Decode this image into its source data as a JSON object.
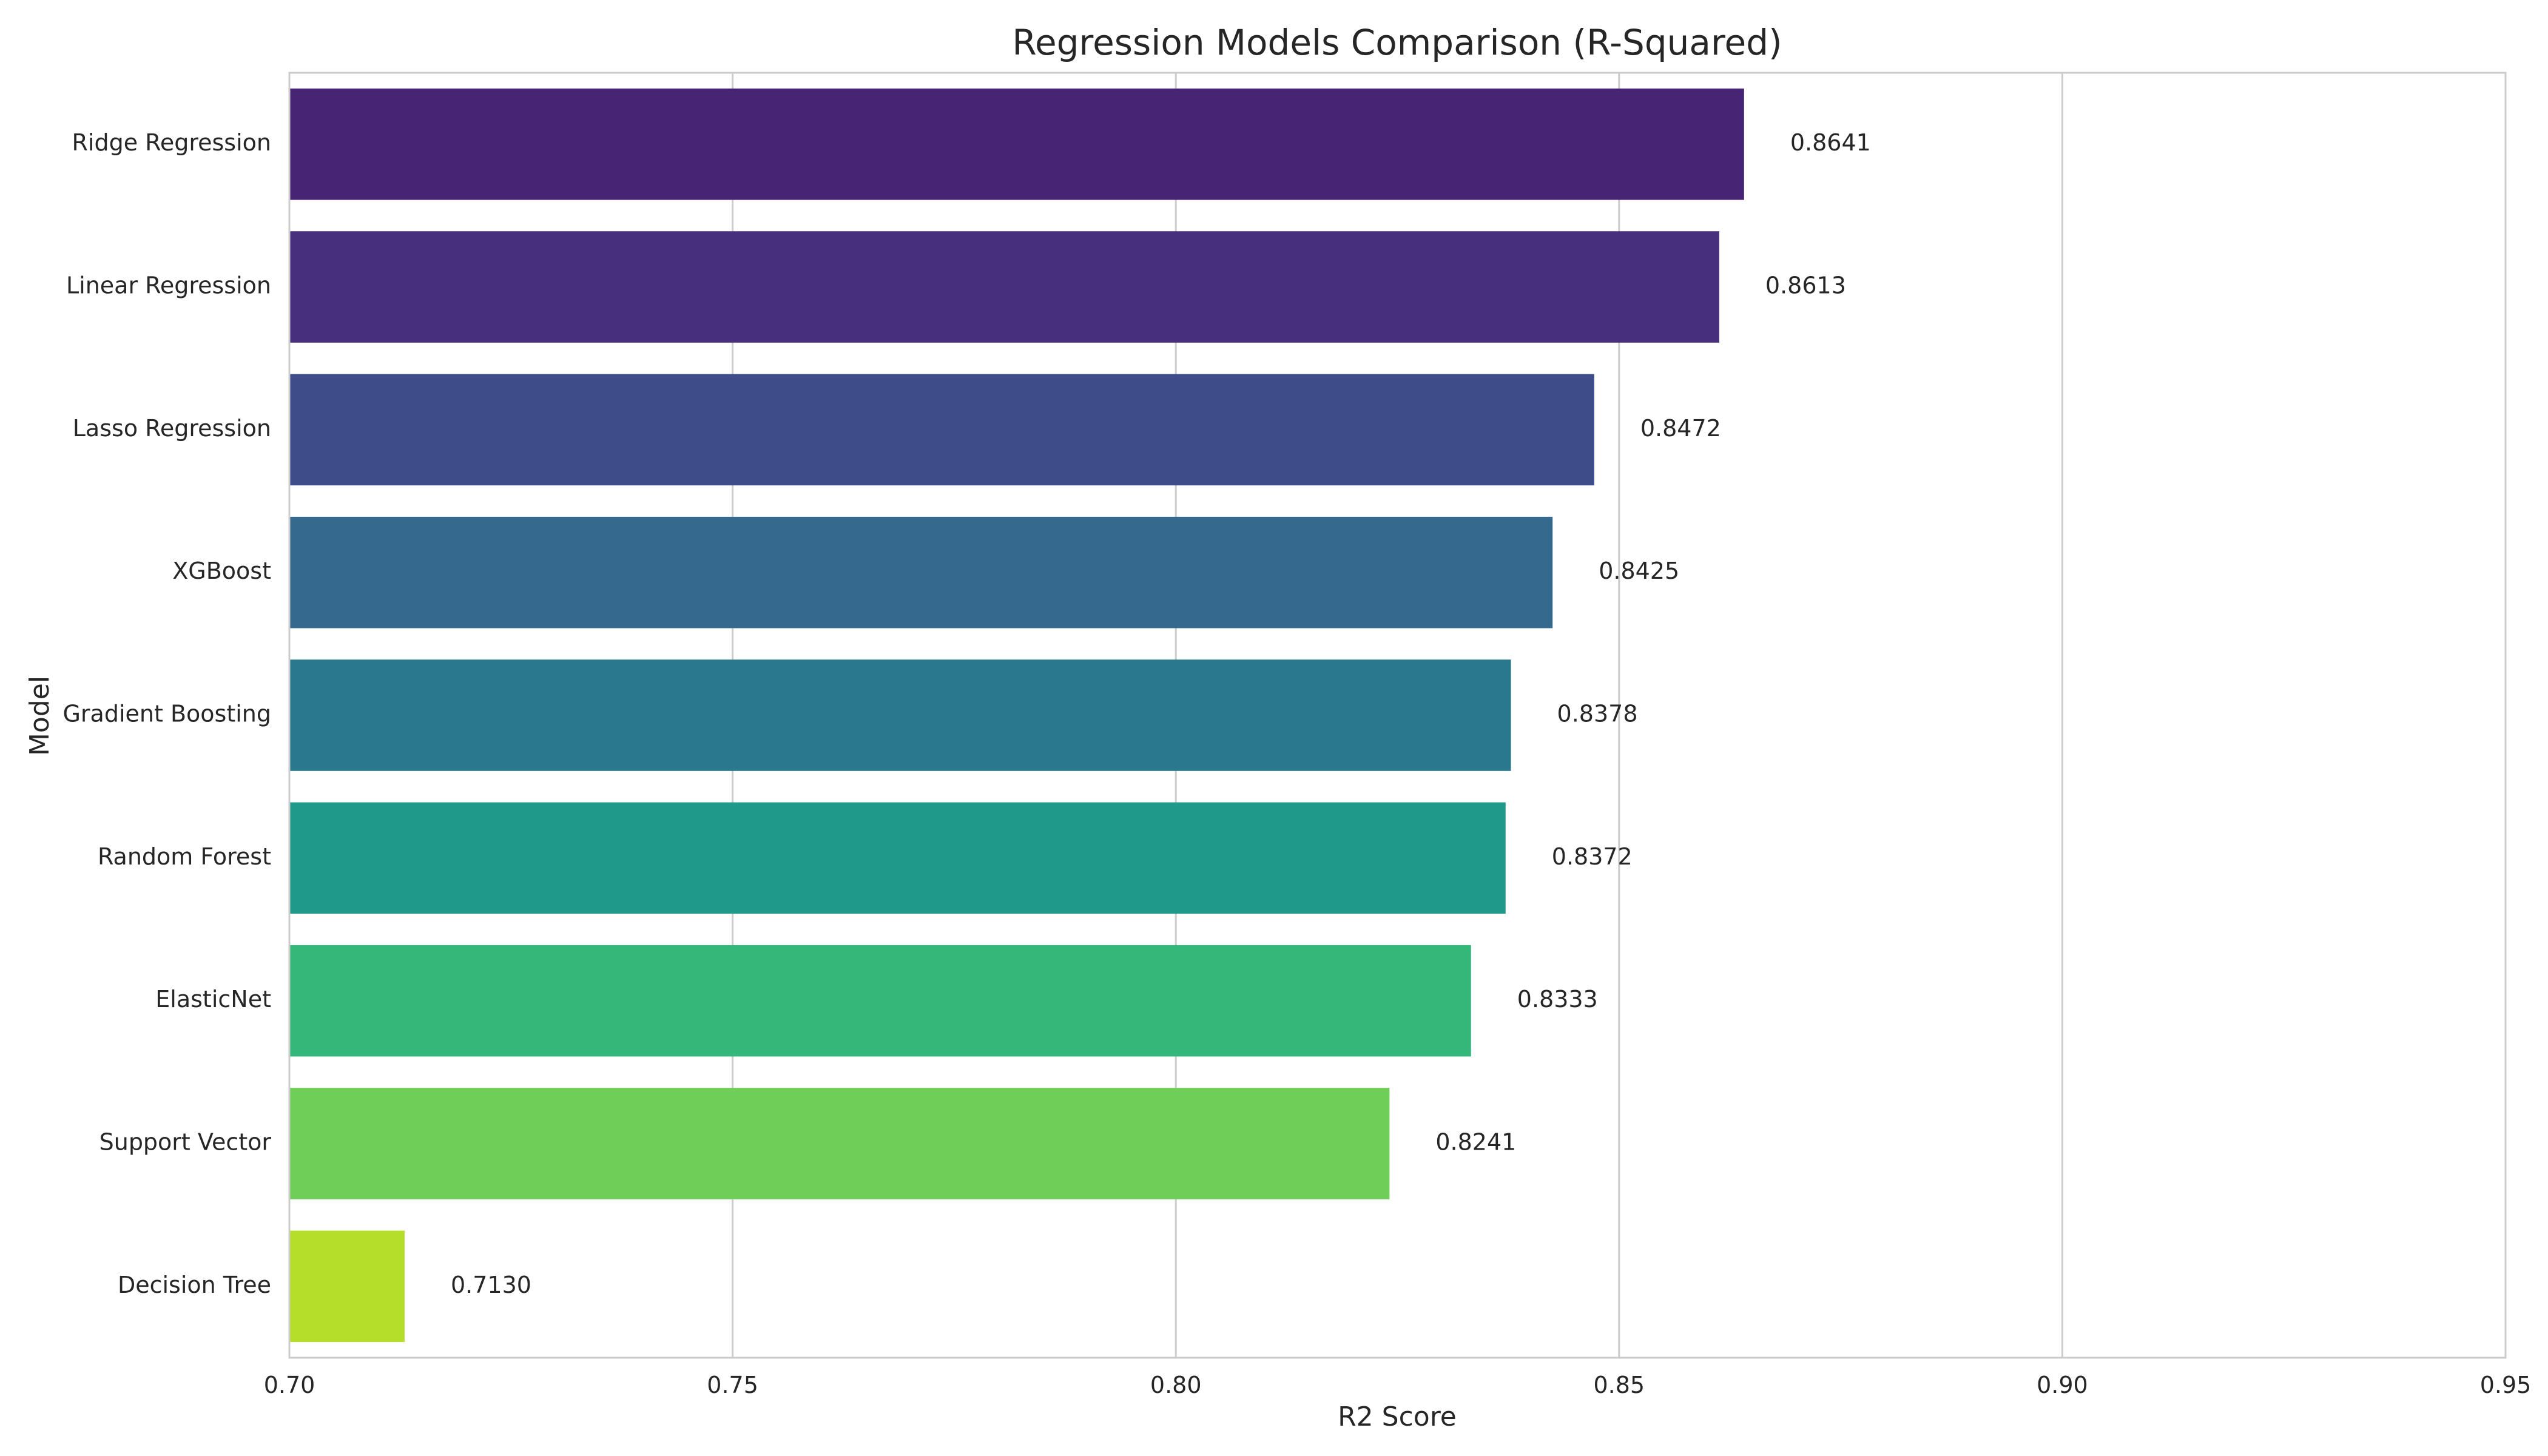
{
  "chart_data": {
    "type": "bar",
    "orientation": "horizontal",
    "title": "Regression Models Comparison (R-Squared)",
    "xlabel": "R2 Score",
    "ylabel": "Model",
    "xlim": [
      0.7,
      0.95
    ],
    "xticks": [
      0.7,
      0.75,
      0.8,
      0.85,
      0.9,
      0.95
    ],
    "xtick_labels": [
      "0.70",
      "0.75",
      "0.80",
      "0.85",
      "0.90",
      "0.95"
    ],
    "grid": "vertical",
    "palette": "viridis",
    "categories": [
      "Ridge Regression",
      "Linear Regression",
      "Lasso Regression",
      "XGBoost",
      "Gradient Boosting",
      "Random Forest",
      "ElasticNet",
      "Support Vector",
      "Decision Tree"
    ],
    "values": [
      0.8641,
      0.8613,
      0.8472,
      0.8425,
      0.8378,
      0.8372,
      0.8333,
      0.8241,
      0.713
    ],
    "value_labels": [
      "0.8641",
      "0.8613",
      "0.8472",
      "0.8425",
      "0.8378",
      "0.8372",
      "0.8333",
      "0.8241",
      "0.7130"
    ],
    "colors": [
      "#482475",
      "#472f7d",
      "#3e4c8a",
      "#35698d",
      "#2a788e",
      "#1f9a8a",
      "#35b779",
      "#6ece58",
      "#b5de2b"
    ]
  }
}
